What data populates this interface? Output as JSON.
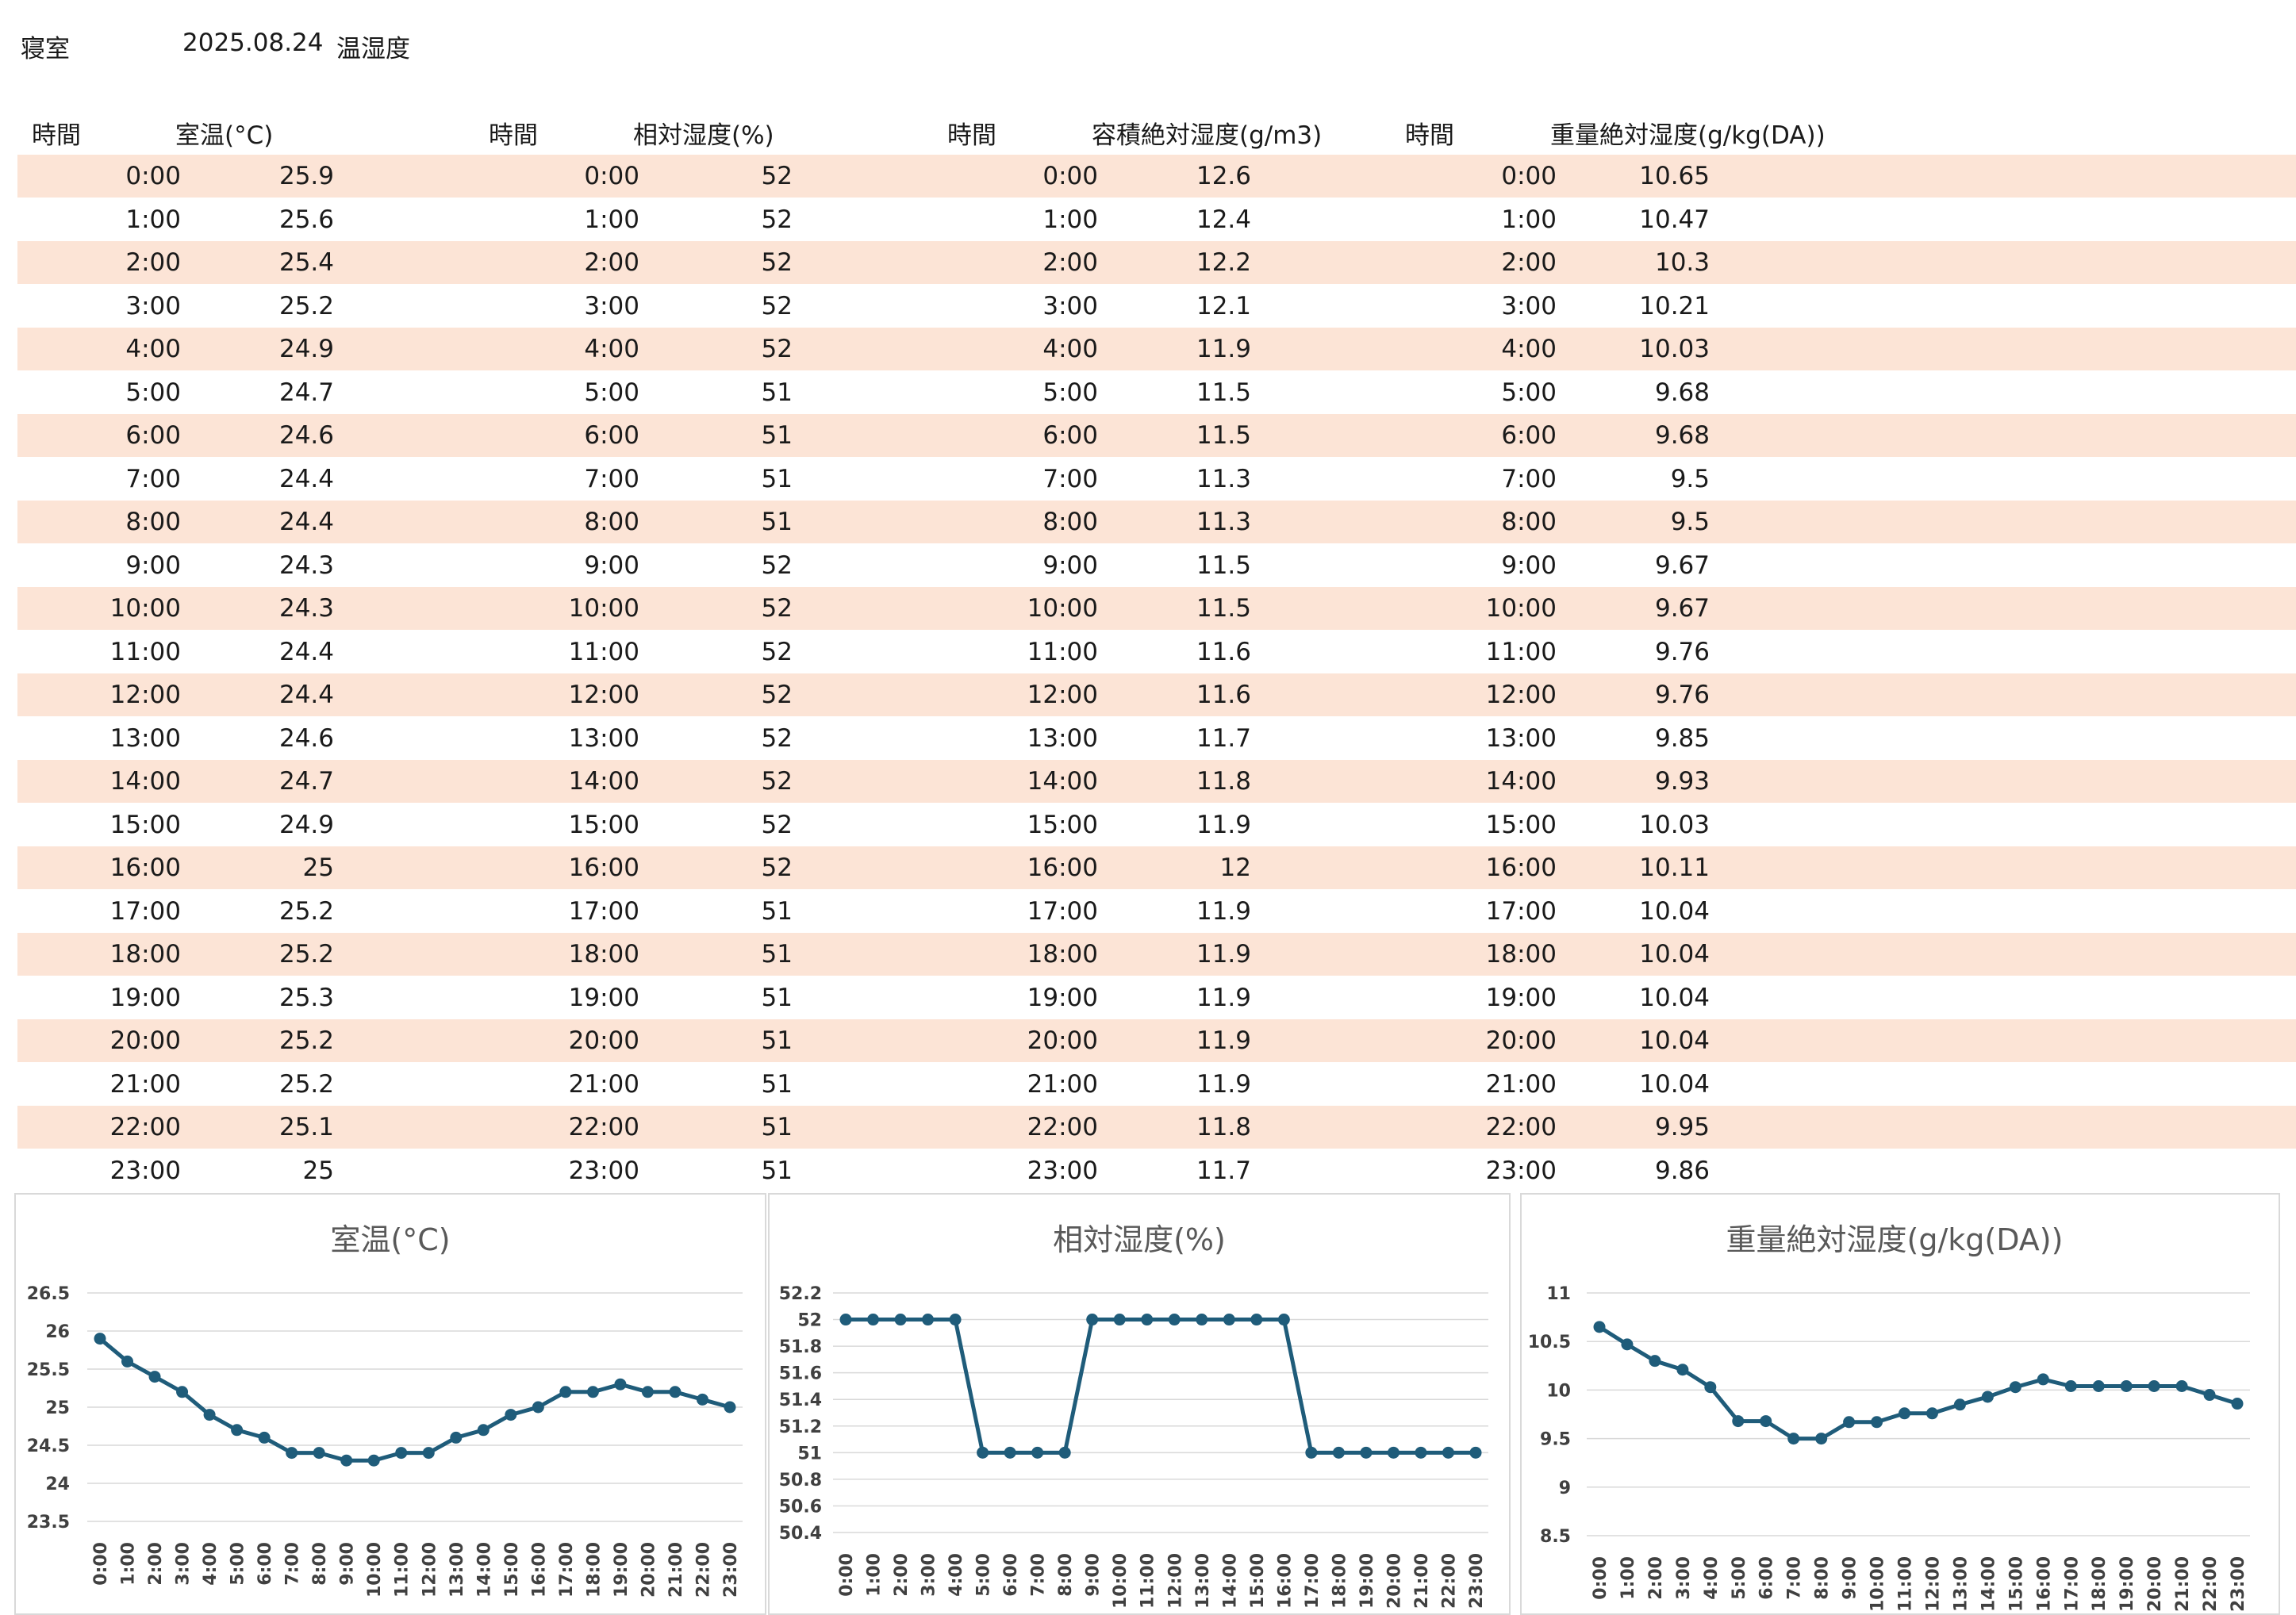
{
  "title": {
    "room": "寝室",
    "date": "2025.08.24",
    "kind": "温湿度"
  },
  "headers": [
    {
      "time": "時間",
      "value": "室温(°C)"
    },
    {
      "time": "時間",
      "value": "相対湿度(%)"
    },
    {
      "time": "時間",
      "value": "容積絶対湿度(g/m3)"
    },
    {
      "time": "時間",
      "value": "重量絶対湿度(g/kg(DA))"
    }
  ],
  "times": [
    "0:00",
    "1:00",
    "2:00",
    "3:00",
    "4:00",
    "5:00",
    "6:00",
    "7:00",
    "8:00",
    "9:00",
    "10:00",
    "11:00",
    "12:00",
    "13:00",
    "14:00",
    "15:00",
    "16:00",
    "17:00",
    "18:00",
    "19:00",
    "20:00",
    "21:00",
    "22:00",
    "23:00"
  ],
  "table": {
    "temperature": [
      "25.9",
      "25.6",
      "25.4",
      "25.2",
      "24.9",
      "24.7",
      "24.6",
      "24.4",
      "24.4",
      "24.3",
      "24.3",
      "24.4",
      "24.4",
      "24.6",
      "24.7",
      "24.9",
      "25",
      "25.2",
      "25.2",
      "25.3",
      "25.2",
      "25.2",
      "25.1",
      "25"
    ],
    "relative_humidity": [
      "52",
      "52",
      "52",
      "52",
      "52",
      "51",
      "51",
      "51",
      "51",
      "52",
      "52",
      "52",
      "52",
      "52",
      "52",
      "52",
      "52",
      "51",
      "51",
      "51",
      "51",
      "51",
      "51",
      "51"
    ],
    "volumetric_humidity": [
      "12.6",
      "12.4",
      "12.2",
      "12.1",
      "11.9",
      "11.5",
      "11.5",
      "11.3",
      "11.3",
      "11.5",
      "11.5",
      "11.6",
      "11.6",
      "11.7",
      "11.8",
      "11.9",
      "12",
      "11.9",
      "11.9",
      "11.9",
      "11.9",
      "11.9",
      "11.8",
      "11.7"
    ],
    "weight_humidity": [
      "10.65",
      "10.47",
      "10.3",
      "10.21",
      "10.03",
      "9.68",
      "9.68",
      "9.5",
      "9.5",
      "9.67",
      "9.67",
      "9.76",
      "9.76",
      "9.85",
      "9.93",
      "10.03",
      "10.11",
      "10.04",
      "10.04",
      "10.04",
      "10.04",
      "10.04",
      "9.95",
      "9.86"
    ]
  },
  "colors": {
    "row_shade": "#fce4d6",
    "series": "#1f5c7a",
    "grid": "#d9d9d9"
  },
  "chart_data": [
    {
      "type": "line",
      "title": "室温(°C)",
      "x": [
        "0:00",
        "1:00",
        "2:00",
        "3:00",
        "4:00",
        "5:00",
        "6:00",
        "7:00",
        "8:00",
        "9:00",
        "10:00",
        "11:00",
        "12:00",
        "13:00",
        "14:00",
        "15:00",
        "16:00",
        "17:00",
        "18:00",
        "19:00",
        "20:00",
        "21:00",
        "22:00",
        "23:00"
      ],
      "values": [
        25.9,
        25.6,
        25.4,
        25.2,
        24.9,
        24.7,
        24.6,
        24.4,
        24.4,
        24.3,
        24.3,
        24.4,
        24.4,
        24.6,
        24.7,
        24.9,
        25,
        25.2,
        25.2,
        25.3,
        25.2,
        25.2,
        25.1,
        25
      ],
      "ylim": [
        23.5,
        26.5
      ],
      "yticks": [
        "26.5",
        "26",
        "25.5",
        "25",
        "24.5",
        "24",
        "23.5"
      ],
      "grid": true,
      "markers": true
    },
    {
      "type": "line",
      "title": "相対湿度(%)",
      "x": [
        "0:00",
        "1:00",
        "2:00",
        "3:00",
        "4:00",
        "5:00",
        "6:00",
        "7:00",
        "8:00",
        "9:00",
        "10:00",
        "11:00",
        "12:00",
        "13:00",
        "14:00",
        "15:00",
        "16:00",
        "17:00",
        "18:00",
        "19:00",
        "20:00",
        "21:00",
        "22:00",
        "23:00"
      ],
      "values": [
        52,
        52,
        52,
        52,
        52,
        51,
        51,
        51,
        51,
        52,
        52,
        52,
        52,
        52,
        52,
        52,
        52,
        51,
        51,
        51,
        51,
        51,
        51,
        51
      ],
      "ylim": [
        50.4,
        52.2
      ],
      "yticks": [
        "52.2",
        "52",
        "51.8",
        "51.6",
        "51.4",
        "51.2",
        "51",
        "50.8",
        "50.6",
        "50.4"
      ],
      "grid": true,
      "markers": true
    },
    {
      "type": "line",
      "title": "重量絶対湿度(g/kg(DA))",
      "x": [
        "0:00",
        "1:00",
        "2:00",
        "3:00",
        "4:00",
        "5:00",
        "6:00",
        "7:00",
        "8:00",
        "9:00",
        "10:00",
        "11:00",
        "12:00",
        "13:00",
        "14:00",
        "15:00",
        "16:00",
        "17:00",
        "18:00",
        "19:00",
        "20:00",
        "21:00",
        "22:00",
        "23:00"
      ],
      "values": [
        10.65,
        10.47,
        10.3,
        10.21,
        10.03,
        9.68,
        9.68,
        9.5,
        9.5,
        9.67,
        9.67,
        9.76,
        9.76,
        9.85,
        9.93,
        10.03,
        10.11,
        10.04,
        10.04,
        10.04,
        10.04,
        10.04,
        9.95,
        9.86
      ],
      "ylim": [
        8.5,
        11
      ],
      "yticks": [
        "11",
        "10.5",
        "10",
        "9.5",
        "9",
        "8.5"
      ],
      "grid": true,
      "markers": true
    }
  ]
}
